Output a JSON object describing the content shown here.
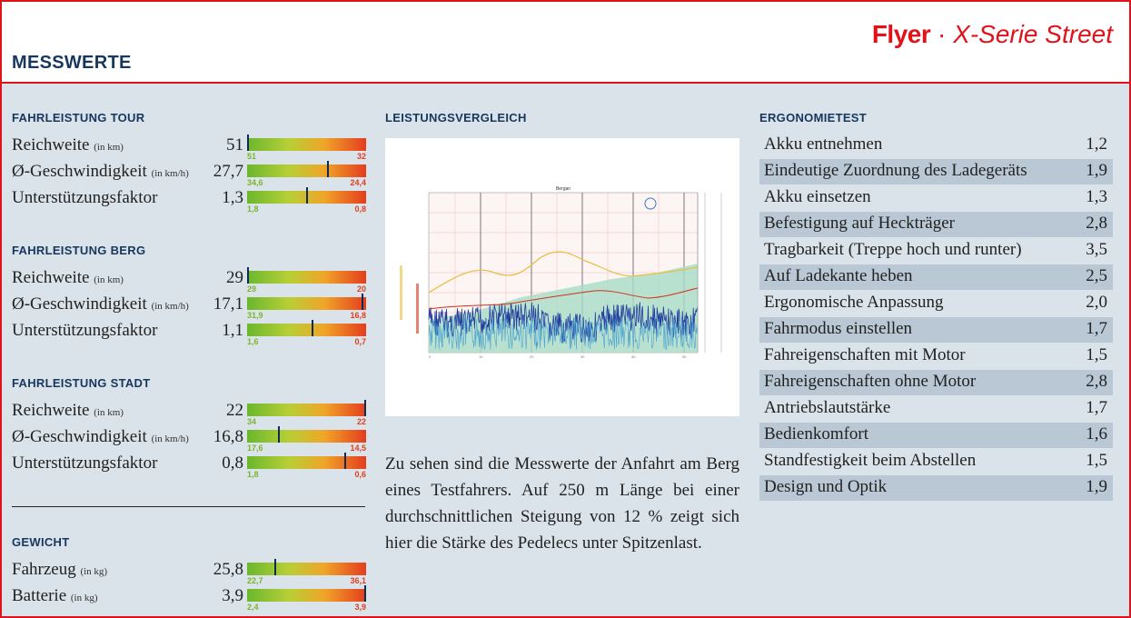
{
  "header": {
    "title": "MESSWERTE",
    "brand_bold": "Flyer",
    "brand_sep": "·",
    "brand_model": "X-Serie Street"
  },
  "tour": {
    "title": "FAHRLEISTUNG TOUR",
    "rows": [
      {
        "label": "Reichweite",
        "unit": "(in km)",
        "value": "51",
        "lo": "51",
        "hi": "32",
        "level": 0.0
      },
      {
        "label": "Ø-Geschwindigkeit",
        "unit": "(in km/h)",
        "value": "27,7",
        "lo": "34,6",
        "hi": "24,4",
        "level": 0.68
      },
      {
        "label": "Unterstützungsfaktor",
        "unit": "",
        "value": "1,3",
        "lo": "1,8",
        "hi": "0,8",
        "level": 0.5
      }
    ]
  },
  "berg": {
    "title": "FAHRLEISTUNG BERG",
    "rows": [
      {
        "label": "Reichweite",
        "unit": "(in km)",
        "value": "29",
        "lo": "29",
        "hi": "20",
        "level": 0.0
      },
      {
        "label": "Ø-Geschwindigkeit",
        "unit": "(in km/h)",
        "value": "17,1",
        "lo": "31,9",
        "hi": "16,8",
        "level": 0.98
      },
      {
        "label": "Unterstützungsfaktor",
        "unit": "",
        "value": "1,1",
        "lo": "1,6",
        "hi": "0,7",
        "level": 0.55
      }
    ]
  },
  "stadt": {
    "title": "FAHRLEISTUNG STADT",
    "rows": [
      {
        "label": "Reichweite",
        "unit": "(in km)",
        "value": "22",
        "lo": "34",
        "hi": "22",
        "level": 1.0
      },
      {
        "label": "Ø-Geschwindigkeit",
        "unit": "(in km/h)",
        "value": "16,8",
        "lo": "17,6",
        "hi": "14,5",
        "level": 0.26
      },
      {
        "label": "Unterstützungsfaktor",
        "unit": "",
        "value": "0,8",
        "lo": "1,8",
        "hi": "0,6",
        "level": 0.83
      }
    ]
  },
  "gewicht": {
    "title": "GEWICHT",
    "rows": [
      {
        "label": "Fahrzeug",
        "unit": "(in kg)",
        "value": "25,8",
        "lo": "22,7",
        "hi": "36,1",
        "level": 0.23
      },
      {
        "label": "Batterie",
        "unit": "(in kg)",
        "value": "3,9",
        "lo": "2,4",
        "hi": "3,9",
        "level": 1.0
      }
    ]
  },
  "vergleich": {
    "title": "LEISTUNGSVERGLEICH",
    "chart_title": "Bergan",
    "description": "Zu sehen sind die Messwerte der Anfahrt am Berg eines Testfahrers. Auf 250 m Länge bei einer durchschnittlichen Steigung von 12 % zeigt sich hier die Stärke des Pedelecs unter Spitzenlast."
  },
  "ergonomie": {
    "title": "ERGONOMIETEST",
    "rows": [
      {
        "label": "Akku entnehmen",
        "value": "1,2"
      },
      {
        "label": "Eindeutige Zuordnung des Ladegeräts",
        "value": "1,9"
      },
      {
        "label": "Akku einsetzen",
        "value": "1,3"
      },
      {
        "label": "Befestigung auf Heckträger",
        "value": "2,8"
      },
      {
        "label": "Tragbarkeit (Treppe hoch und runter)",
        "value": "3,5"
      },
      {
        "label": "Auf Ladekante heben",
        "value": "2,5"
      },
      {
        "label": "Ergonomische Anpassung",
        "value": "2,0"
      },
      {
        "label": "Fahrmodus einstellen",
        "value": "1,7"
      },
      {
        "label": "Fahreigenschaften mit Motor",
        "value": "1,5"
      },
      {
        "label": "Fahreigenschaften ohne Motor",
        "value": "2,8"
      },
      {
        "label": "Antriebslautstärke",
        "value": "1,7"
      },
      {
        "label": "Bedienkomfort",
        "value": "1,6"
      },
      {
        "label": "Standfestigkeit beim Abstellen",
        "value": "1,5"
      },
      {
        "label": "Design und Optik",
        "value": "1,9"
      }
    ]
  },
  "colors": {
    "accent": "#e0121a",
    "navy": "#17375e",
    "panel": "#dae3ea",
    "stripe": "#b9c8d4"
  }
}
